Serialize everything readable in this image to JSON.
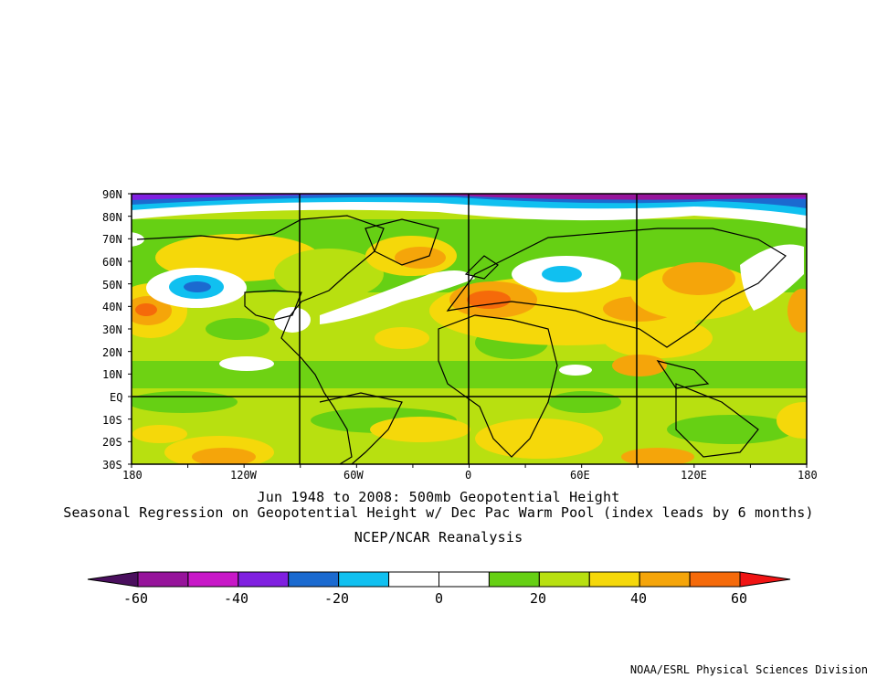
{
  "map": {
    "lat_labels": [
      "90N",
      "80N",
      "70N",
      "60N",
      "50N",
      "40N",
      "30N",
      "20N",
      "10N",
      "EQ",
      "10S",
      "20S",
      "30S"
    ],
    "lon_labels": [
      "180",
      "120W",
      "60W",
      "0",
      "60E",
      "120E",
      "180"
    ],
    "grid_lons": [
      "90W",
      "0",
      "90E"
    ],
    "grid_lats": [
      "EQ"
    ]
  },
  "title_line1": "Jun 1948 to 2008: 500mb Geopotential Height",
  "title_line2": "Seasonal Regression on Geopotential Height  w/ Dec Pac Warm Pool (index leads by 6 months)",
  "source": "NCEP/NCAR Reanalysis",
  "colorbar": {
    "tick_labels": [
      "-60",
      "-40",
      "-20",
      "0",
      "20",
      "40",
      "60"
    ],
    "colors": [
      "#4a0f5e",
      "#96149b",
      "#c818c8",
      "#8020e0",
      "#1b6ad0",
      "#10c0f0",
      "#ffffff",
      "#ffffff",
      "#66d014",
      "#b8e010",
      "#f5d80a",
      "#f5a50a",
      "#f56a0a",
      "#f01414"
    ]
  },
  "credit": "NOAA/ESRL Physical Sciences Division"
}
